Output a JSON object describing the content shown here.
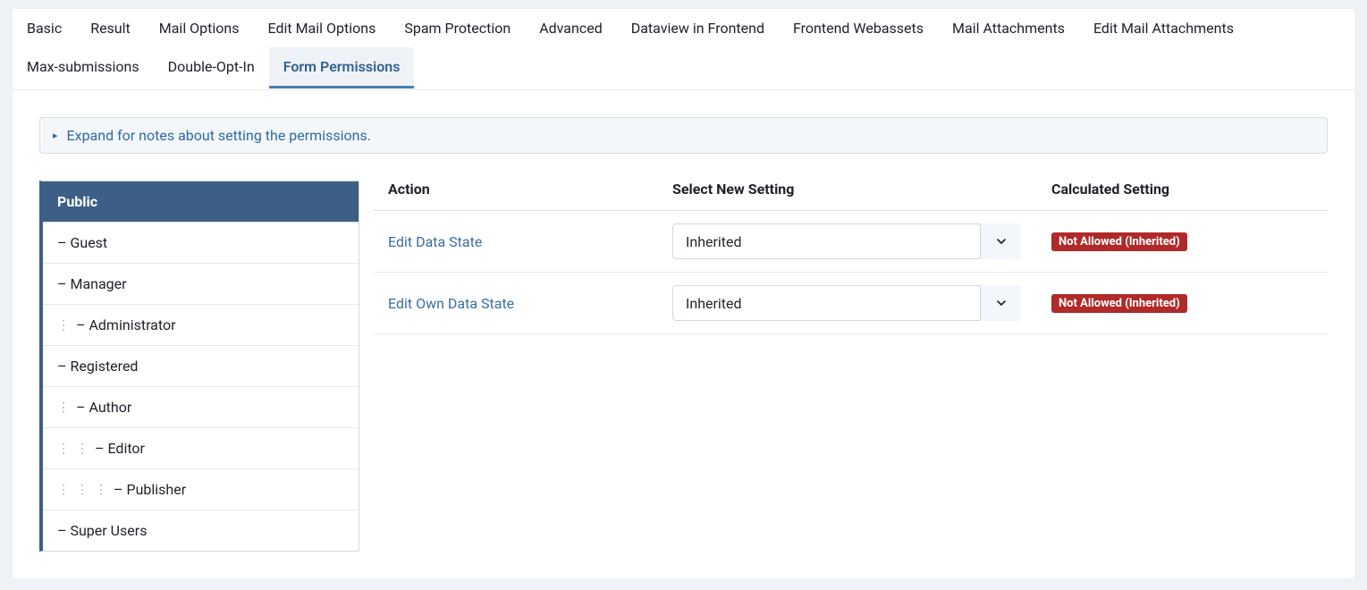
{
  "tabs": [
    {
      "label": "Basic",
      "active": false
    },
    {
      "label": "Result",
      "active": false
    },
    {
      "label": "Mail Options",
      "active": false
    },
    {
      "label": "Edit Mail Options",
      "active": false
    },
    {
      "label": "Spam Protection",
      "active": false
    },
    {
      "label": "Advanced",
      "active": false
    },
    {
      "label": "Dataview in Frontend",
      "active": false
    },
    {
      "label": "Frontend Webassets",
      "active": false
    },
    {
      "label": "Mail Attachments",
      "active": false
    },
    {
      "label": "Edit Mail Attachments",
      "active": false
    },
    {
      "label": "Max-submissions",
      "active": false
    },
    {
      "label": "Double-Opt-In",
      "active": false
    },
    {
      "label": "Form Permissions",
      "active": true
    }
  ],
  "notice": {
    "text": "Expand for notes about setting the permissions."
  },
  "groups": [
    {
      "indent": 0,
      "prefix": "",
      "label": "Public",
      "selected": true
    },
    {
      "indent": 0,
      "prefix": "– ",
      "label": "Guest",
      "selected": false
    },
    {
      "indent": 0,
      "prefix": "– ",
      "label": "Manager",
      "selected": false
    },
    {
      "indent": 1,
      "prefix": "– ",
      "label": "Administrator",
      "selected": false
    },
    {
      "indent": 0,
      "prefix": "– ",
      "label": "Registered",
      "selected": false
    },
    {
      "indent": 1,
      "prefix": "– ",
      "label": "Author",
      "selected": false
    },
    {
      "indent": 2,
      "prefix": "– ",
      "label": "Editor",
      "selected": false
    },
    {
      "indent": 3,
      "prefix": "– ",
      "label": "Publisher",
      "selected": false
    },
    {
      "indent": 0,
      "prefix": "– ",
      "label": "Super Users",
      "selected": false
    }
  ],
  "headers": {
    "action": "Action",
    "select": "Select New Setting",
    "calc": "Calculated Setting"
  },
  "rows": [
    {
      "action": "Edit Data State",
      "setting": "Inherited",
      "badge": "Not Allowed (Inherited)"
    },
    {
      "action": "Edit Own Data State",
      "setting": "Inherited",
      "badge": "Not Allowed (Inherited)"
    }
  ],
  "colors": {
    "accent": "#3d5f86",
    "link": "#2f6aa4",
    "badge_bg": "#b02a2a"
  }
}
